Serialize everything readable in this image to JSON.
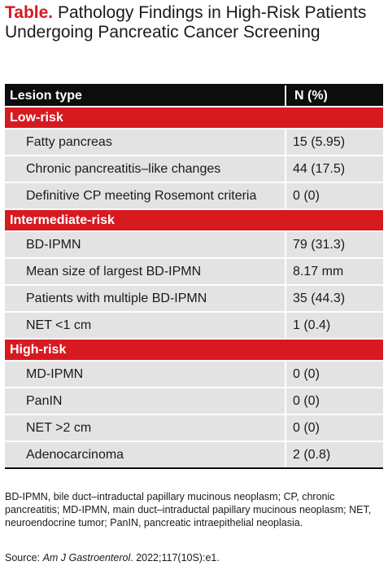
{
  "title": {
    "label": "Table.",
    "text": "Pathology Findings in High-Risk Patients Undergoing Pancreatic Cancer Screening"
  },
  "table": {
    "headers": [
      "Lesion type",
      "N (%)"
    ],
    "sections": [
      {
        "name": "Low-risk",
        "rows": [
          {
            "lesion": "Fatty pancreas",
            "n": "15 (5.95)"
          },
          {
            "lesion": "Chronic pancreatitis–like changes",
            "n": "44 (17.5)"
          },
          {
            "lesion": "Definitive CP meeting Rosemont criteria",
            "n": "0 (0)"
          }
        ]
      },
      {
        "name": "Intermediate-risk",
        "rows": [
          {
            "lesion": "BD-IPMN",
            "n": "79 (31.3)"
          },
          {
            "lesion": "Mean size of largest BD-IPMN",
            "n": "8.17 mm"
          },
          {
            "lesion": "Patients with multiple BD-IPMN",
            "n": "35 (44.3)"
          },
          {
            "lesion": "NET <1 cm",
            "n": "1 (0.4)"
          }
        ]
      },
      {
        "name": "High-risk",
        "rows": [
          {
            "lesion": "MD-IPMN",
            "n": "0 (0)"
          },
          {
            "lesion": "PanIN",
            "n": "0 (0)"
          },
          {
            "lesion": "NET >2 cm",
            "n": "0 (0)"
          },
          {
            "lesion": "Adenocarcinoma",
            "n": "2 (0.8)"
          }
        ]
      }
    ]
  },
  "footnote": "BD-IPMN, bile duct–intraductal papillary mucinous neoplasm; CP, chronic pancreatitis; MD-IPMN, main duct–intraductal papillary mucinous neoplasm; NET, neuroendocrine tumor; PanIN, pancreatic intraepithelial neoplasia.",
  "source": {
    "prefix": "Source: ",
    "journal": "Am J Gastroenterol",
    "citation": ". 2022;117(10S):e1."
  },
  "colors": {
    "accent_red": "#d71920",
    "header_black": "#0d0d0d",
    "row_gray": "#e3e3e3"
  }
}
